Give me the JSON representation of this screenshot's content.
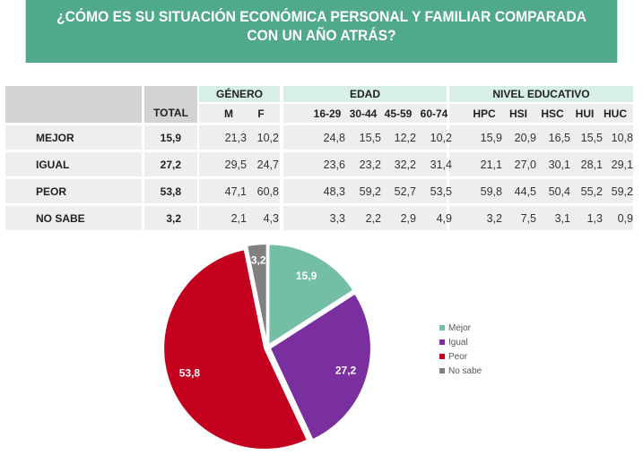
{
  "title_line1": "¿CÓMO ES SU SITUACIÓN ECONÓMICA PERSONAL Y FAMILIAR COMPARADA",
  "title_line2": "CON UN AÑO ATRÁS?",
  "table": {
    "total_header": "TOTAL",
    "groups": [
      "GÉNERO",
      "EDAD",
      "NIVEL EDUCATIVO"
    ],
    "columns": [
      "M",
      "F",
      "16-29",
      "30-44",
      "45-59",
      "60-74",
      "HPC",
      "HSI",
      "HSC",
      "HUI",
      "HUC"
    ],
    "rows": [
      {
        "label": "MEJOR",
        "total": "15,9",
        "values": [
          "21,3",
          "10,2",
          "24,8",
          "15,5",
          "12,2",
          "10,2",
          "15,9",
          "20,9",
          "16,5",
          "15,5",
          "10,8"
        ]
      },
      {
        "label": "IGUAL",
        "total": "27,2",
        "values": [
          "29,5",
          "24,7",
          "23,6",
          "23,2",
          "32,2",
          "31,4",
          "21,1",
          "27,0",
          "30,1",
          "28,1",
          "29,1"
        ]
      },
      {
        "label": "PEOR",
        "total": "53,8",
        "values": [
          "47,1",
          "60,8",
          "48,3",
          "59,2",
          "52,7",
          "53,5",
          "59,8",
          "44,5",
          "50,4",
          "55,2",
          "59,2"
        ]
      },
      {
        "label": "NO SABE",
        "total": "3,2",
        "values": [
          "2,1",
          "4,3",
          "3,3",
          "2,2",
          "2,9",
          "4,9",
          "3,2",
          "7,5",
          "3,1",
          "1,3",
          "0,9"
        ]
      }
    ]
  },
  "chart_data": {
    "type": "pie",
    "categories": [
      "Mejor",
      "Igual",
      "Peor",
      "No sabe"
    ],
    "values": [
      15.9,
      27.2,
      53.8,
      3.2
    ],
    "labels": [
      "15,9",
      "27,2",
      "53,8",
      "3,2"
    ],
    "colors": [
      "#74bfa4",
      "#7a2f9e",
      "#c4001f",
      "#808080"
    ],
    "legend": "right"
  }
}
